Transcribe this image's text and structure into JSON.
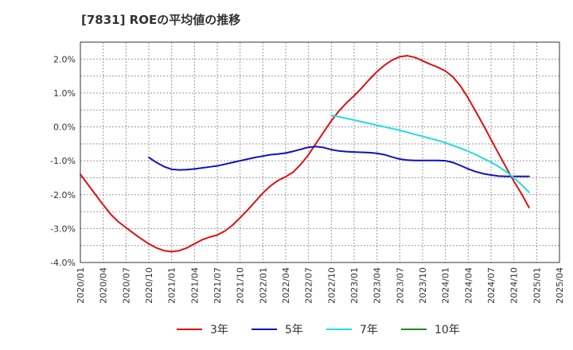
{
  "chart_data": {
    "type": "line",
    "title": "[7831]  ROEの平均値の推移",
    "xlabel": "",
    "ylabel": "",
    "ylim": [
      -4.0,
      2.5
    ],
    "grid": true,
    "legend_position": "bottom",
    "x_tick_labels": [
      "2020/01",
      "2020/04",
      "2020/07",
      "2020/10",
      "2021/01",
      "2021/04",
      "2021/07",
      "2021/10",
      "2022/01",
      "2022/04",
      "2022/07",
      "2022/10",
      "2023/01",
      "2023/04",
      "2023/07",
      "2023/10",
      "2024/01",
      "2024/04",
      "2024/07",
      "2024/10",
      "2025/01",
      "2025/04"
    ],
    "y_ticks": [
      -4.0,
      -3.0,
      -2.0,
      -1.0,
      0.0,
      1.0,
      2.0
    ],
    "y_tick_labels": [
      "-4.0%",
      "-3.0%",
      "-2.0%",
      "-1.0%",
      "0.0%",
      "1.0%",
      "2.0%"
    ],
    "series": [
      {
        "name": "3年",
        "color": "#dd1111",
        "points": [
          [
            "2020/01",
            -1.4
          ],
          [
            "2020/02",
            -1.7
          ],
          [
            "2020/03",
            -2.0
          ],
          [
            "2020/04",
            -2.3
          ],
          [
            "2020/05",
            -2.58
          ],
          [
            "2020/06",
            -2.8
          ],
          [
            "2020/07",
            -2.97
          ],
          [
            "2020/08",
            -3.14
          ],
          [
            "2020/09",
            -3.3
          ],
          [
            "2020/10",
            -3.45
          ],
          [
            "2020/11",
            -3.57
          ],
          [
            "2020/12",
            -3.65
          ],
          [
            "2021/01",
            -3.68
          ],
          [
            "2021/02",
            -3.65
          ],
          [
            "2021/03",
            -3.57
          ],
          [
            "2021/04",
            -3.45
          ],
          [
            "2021/05",
            -3.33
          ],
          [
            "2021/06",
            -3.25
          ],
          [
            "2021/07",
            -3.19
          ],
          [
            "2021/08",
            -3.07
          ],
          [
            "2021/09",
            -2.9
          ],
          [
            "2021/10",
            -2.68
          ],
          [
            "2021/11",
            -2.45
          ],
          [
            "2021/12",
            -2.2
          ],
          [
            "2022/01",
            -1.95
          ],
          [
            "2022/02",
            -1.74
          ],
          [
            "2022/03",
            -1.58
          ],
          [
            "2022/04",
            -1.47
          ],
          [
            "2022/05",
            -1.33
          ],
          [
            "2022/06",
            -1.1
          ],
          [
            "2022/07",
            -0.82
          ],
          [
            "2022/08",
            -0.48
          ],
          [
            "2022/09",
            -0.15
          ],
          [
            "2022/10",
            0.18
          ],
          [
            "2022/11",
            0.47
          ],
          [
            "2022/12",
            0.71
          ],
          [
            "2023/01",
            0.92
          ],
          [
            "2023/02",
            1.15
          ],
          [
            "2023/03",
            1.4
          ],
          [
            "2023/04",
            1.63
          ],
          [
            "2023/05",
            1.82
          ],
          [
            "2023/06",
            1.97
          ],
          [
            "2023/07",
            2.07
          ],
          [
            "2023/08",
            2.1
          ],
          [
            "2023/09",
            2.05
          ],
          [
            "2023/10",
            1.95
          ],
          [
            "2023/11",
            1.85
          ],
          [
            "2023/12",
            1.76
          ],
          [
            "2024/01",
            1.65
          ],
          [
            "2024/02",
            1.47
          ],
          [
            "2024/03",
            1.2
          ],
          [
            "2024/04",
            0.85
          ],
          [
            "2024/05",
            0.45
          ],
          [
            "2024/06",
            0.05
          ],
          [
            "2024/07",
            -0.37
          ],
          [
            "2024/08",
            -0.79
          ],
          [
            "2024/09",
            -1.2
          ],
          [
            "2024/10",
            -1.6
          ],
          [
            "2024/11",
            -1.97
          ],
          [
            "2024/12",
            -2.38
          ]
        ]
      },
      {
        "name": "5年",
        "color": "#1111bb",
        "points": [
          [
            "2020/10",
            -0.9
          ],
          [
            "2020/11",
            -1.05
          ],
          [
            "2020/12",
            -1.17
          ],
          [
            "2021/01",
            -1.25
          ],
          [
            "2021/02",
            -1.27
          ],
          [
            "2021/03",
            -1.26
          ],
          [
            "2021/04",
            -1.24
          ],
          [
            "2021/05",
            -1.21
          ],
          [
            "2021/06",
            -1.18
          ],
          [
            "2021/07",
            -1.15
          ],
          [
            "2021/08",
            -1.1
          ],
          [
            "2021/09",
            -1.05
          ],
          [
            "2021/10",
            -1.0
          ],
          [
            "2021/11",
            -0.95
          ],
          [
            "2021/12",
            -0.9
          ],
          [
            "2022/01",
            -0.86
          ],
          [
            "2022/02",
            -0.82
          ],
          [
            "2022/03",
            -0.8
          ],
          [
            "2022/04",
            -0.77
          ],
          [
            "2022/05",
            -0.72
          ],
          [
            "2022/06",
            -0.66
          ],
          [
            "2022/07",
            -0.6
          ],
          [
            "2022/08",
            -0.58
          ],
          [
            "2022/09",
            -0.61
          ],
          [
            "2022/10",
            -0.67
          ],
          [
            "2022/11",
            -0.71
          ],
          [
            "2022/12",
            -0.73
          ],
          [
            "2023/01",
            -0.74
          ],
          [
            "2023/02",
            -0.75
          ],
          [
            "2023/03",
            -0.76
          ],
          [
            "2023/04",
            -0.78
          ],
          [
            "2023/05",
            -0.82
          ],
          [
            "2023/06",
            -0.89
          ],
          [
            "2023/07",
            -0.95
          ],
          [
            "2023/08",
            -0.98
          ],
          [
            "2023/09",
            -0.99
          ],
          [
            "2023/10",
            -0.99
          ],
          [
            "2023/11",
            -0.99
          ],
          [
            "2023/12",
            -0.99
          ],
          [
            "2024/01",
            -1.0
          ],
          [
            "2024/02",
            -1.05
          ],
          [
            "2024/03",
            -1.14
          ],
          [
            "2024/04",
            -1.24
          ],
          [
            "2024/05",
            -1.32
          ],
          [
            "2024/06",
            -1.38
          ],
          [
            "2024/07",
            -1.42
          ],
          [
            "2024/08",
            -1.45
          ],
          [
            "2024/09",
            -1.46
          ],
          [
            "2024/10",
            -1.46
          ],
          [
            "2024/11",
            -1.46
          ],
          [
            "2024/12",
            -1.46
          ]
        ]
      },
      {
        "name": "7年",
        "color": "#22dddd",
        "points": [
          [
            "2022/10",
            0.34
          ],
          [
            "2022/11",
            0.3
          ],
          [
            "2022/12",
            0.25
          ],
          [
            "2023/01",
            0.2
          ],
          [
            "2023/02",
            0.15
          ],
          [
            "2023/03",
            0.1
          ],
          [
            "2023/04",
            0.05
          ],
          [
            "2023/05",
            0.0
          ],
          [
            "2023/06",
            -0.05
          ],
          [
            "2023/07",
            -0.1
          ],
          [
            "2023/08",
            -0.16
          ],
          [
            "2023/09",
            -0.22
          ],
          [
            "2023/10",
            -0.28
          ],
          [
            "2023/11",
            -0.34
          ],
          [
            "2023/12",
            -0.4
          ],
          [
            "2024/01",
            -0.47
          ],
          [
            "2024/02",
            -0.55
          ],
          [
            "2024/03",
            -0.63
          ],
          [
            "2024/04",
            -0.72
          ],
          [
            "2024/05",
            -0.82
          ],
          [
            "2024/06",
            -0.93
          ],
          [
            "2024/07",
            -1.04
          ],
          [
            "2024/08",
            -1.17
          ],
          [
            "2024/09",
            -1.32
          ],
          [
            "2024/10",
            -1.5
          ],
          [
            "2024/11",
            -1.7
          ],
          [
            "2024/12",
            -1.93
          ]
        ]
      },
      {
        "name": "10年",
        "color": "#228822",
        "points": []
      }
    ]
  }
}
